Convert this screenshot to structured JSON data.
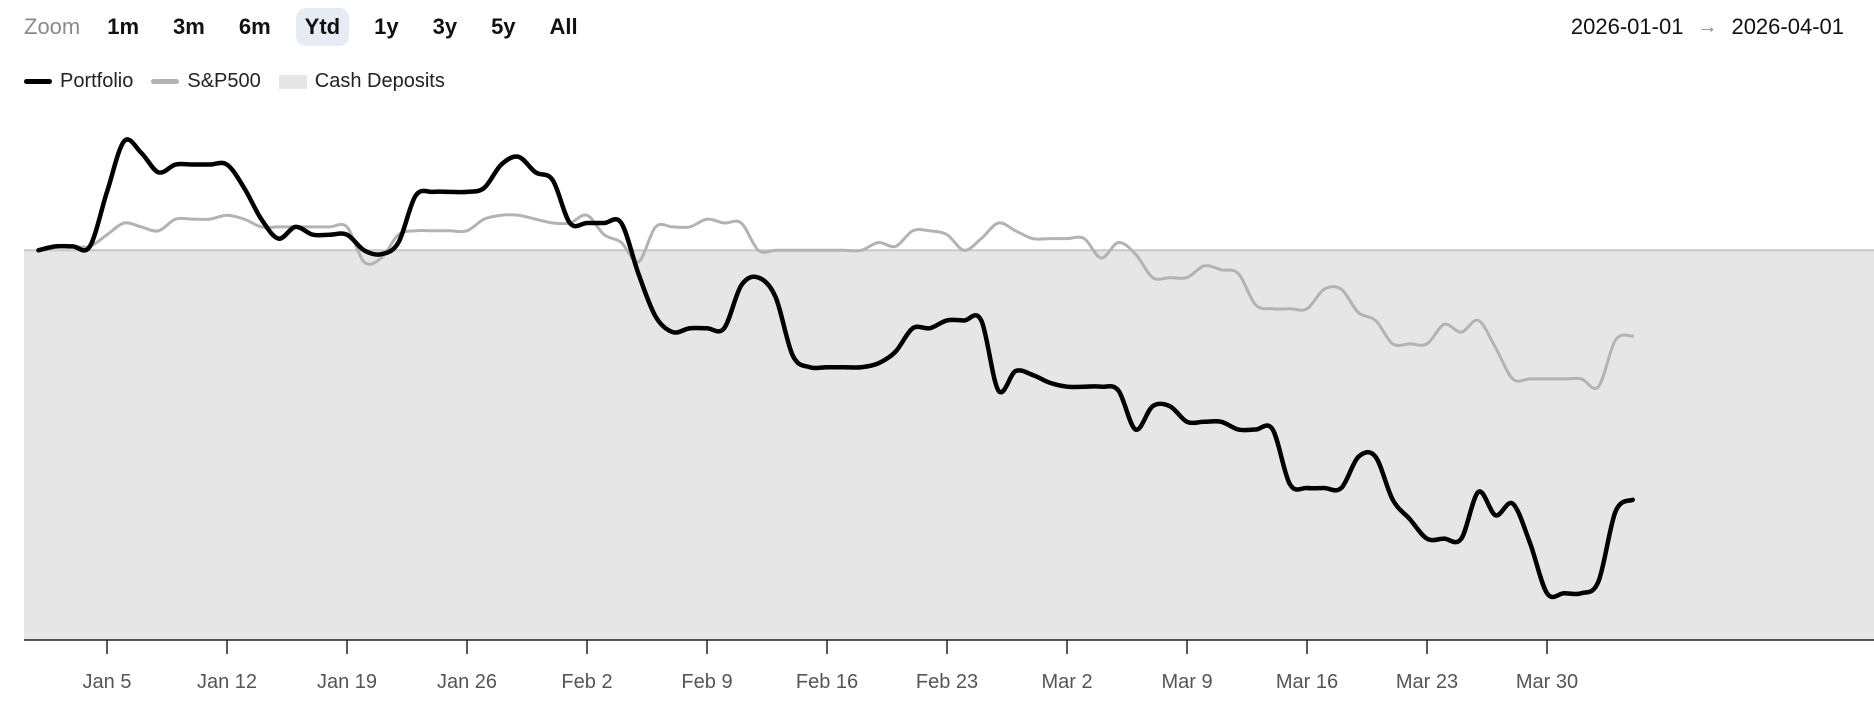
{
  "toolbar": {
    "zoom_label": "Zoom",
    "zoom_options": [
      "1m",
      "3m",
      "6m",
      "Ytd",
      "1y",
      "3y",
      "5y",
      "All"
    ],
    "active_zoom": "Ytd",
    "range_start": "2026-01-01",
    "range_arrow": "→",
    "range_end": "2026-04-01"
  },
  "colors": {
    "portfolio": "#000000",
    "sp500": "#b3b3b3",
    "cash": "#e6e6e6",
    "baseline": "#c8c8c8",
    "active_zoom_bg": "#e7ebf3"
  },
  "chart_data": {
    "type": "line",
    "title": "",
    "xlabel": "",
    "ylabel": "",
    "x_ticks": [
      "Jan 5",
      "Jan 12",
      "Jan 19",
      "Jan 26",
      "Feb 2",
      "Feb 9",
      "Feb 16",
      "Feb 23",
      "Mar 2",
      "Mar 9",
      "Mar 16",
      "Mar 23",
      "Mar 30"
    ],
    "x_start": "2026-01-01",
    "x_end": "2026-03-31",
    "y_axis_shown": false,
    "ylim": [
      -100,
      36
    ],
    "grid": false,
    "legend": {
      "position": "top-left",
      "entries": [
        "Portfolio",
        "S&P500",
        "Cash Deposits"
      ]
    },
    "series": [
      {
        "name": "Portfolio",
        "type": "line",
        "points": [
          [
            "2026-01-01",
            0
          ],
          [
            "2026-01-02",
            1
          ],
          [
            "2026-01-03",
            1
          ],
          [
            "2026-01-04",
            1
          ],
          [
            "2026-01-05",
            15
          ],
          [
            "2026-01-06",
            28
          ],
          [
            "2026-01-07",
            25
          ],
          [
            "2026-01-08",
            20
          ],
          [
            "2026-01-09",
            22
          ],
          [
            "2026-01-10",
            22
          ],
          [
            "2026-01-11",
            22
          ],
          [
            "2026-01-12",
            22
          ],
          [
            "2026-01-13",
            16
          ],
          [
            "2026-01-14",
            8
          ],
          [
            "2026-01-15",
            3
          ],
          [
            "2026-01-16",
            6
          ],
          [
            "2026-01-17",
            4
          ],
          [
            "2026-01-18",
            4
          ],
          [
            "2026-01-19",
            4
          ],
          [
            "2026-01-20",
            0
          ],
          [
            "2026-01-21",
            -1
          ],
          [
            "2026-01-22",
            2
          ],
          [
            "2026-01-23",
            14
          ],
          [
            "2026-01-24",
            15
          ],
          [
            "2026-01-25",
            15
          ],
          [
            "2026-01-26",
            15
          ],
          [
            "2026-01-27",
            16
          ],
          [
            "2026-01-28",
            22
          ],
          [
            "2026-01-29",
            24
          ],
          [
            "2026-01-30",
            20
          ],
          [
            "2026-01-31",
            18
          ],
          [
            "2026-02-01",
            7
          ],
          [
            "2026-02-02",
            7
          ],
          [
            "2026-02-03",
            7
          ],
          [
            "2026-02-04",
            7
          ],
          [
            "2026-02-05",
            -6
          ],
          [
            "2026-02-06",
            -17
          ],
          [
            "2026-02-07",
            -21
          ],
          [
            "2026-02-08",
            -20
          ],
          [
            "2026-02-09",
            -20
          ],
          [
            "2026-02-10",
            -20
          ],
          [
            "2026-02-11",
            -9
          ],
          [
            "2026-02-12",
            -7
          ],
          [
            "2026-02-13",
            -12
          ],
          [
            "2026-02-14",
            -27
          ],
          [
            "2026-02-15",
            -30
          ],
          [
            "2026-02-16",
            -30
          ],
          [
            "2026-02-17",
            -30
          ],
          [
            "2026-02-18",
            -30
          ],
          [
            "2026-02-19",
            -29
          ],
          [
            "2026-02-20",
            -26
          ],
          [
            "2026-02-21",
            -20
          ],
          [
            "2026-02-22",
            -20
          ],
          [
            "2026-02-23",
            -18
          ],
          [
            "2026-02-24",
            -18
          ],
          [
            "2026-02-25",
            -18
          ],
          [
            "2026-02-26",
            -36
          ],
          [
            "2026-02-27",
            -31
          ],
          [
            "2026-02-28",
            -32
          ],
          [
            "2026-03-01",
            -34
          ],
          [
            "2026-03-02",
            -35
          ],
          [
            "2026-03-03",
            -35
          ],
          [
            "2026-03-04",
            -35
          ],
          [
            "2026-03-05",
            -36
          ],
          [
            "2026-03-06",
            -46
          ],
          [
            "2026-03-07",
            -40
          ],
          [
            "2026-03-08",
            -40
          ],
          [
            "2026-03-09",
            -44
          ],
          [
            "2026-03-10",
            -44
          ],
          [
            "2026-03-11",
            -44
          ],
          [
            "2026-03-12",
            -46
          ],
          [
            "2026-03-13",
            -46
          ],
          [
            "2026-03-14",
            -46
          ],
          [
            "2026-03-15",
            -60
          ],
          [
            "2026-03-16",
            -61
          ],
          [
            "2026-03-17",
            -61
          ],
          [
            "2026-03-18",
            -61
          ],
          [
            "2026-03-19",
            -53
          ],
          [
            "2026-03-20",
            -53
          ],
          [
            "2026-03-21",
            -64
          ],
          [
            "2026-03-22",
            -69
          ],
          [
            "2026-03-23",
            -74
          ],
          [
            "2026-03-24",
            -74
          ],
          [
            "2026-03-25",
            -74
          ],
          [
            "2026-03-26",
            -62
          ],
          [
            "2026-03-27",
            -68
          ],
          [
            "2026-03-28",
            -65
          ],
          [
            "2026-03-29",
            -75
          ],
          [
            "2026-03-30",
            -88
          ],
          [
            "2026-03-31",
            -88
          ],
          [
            "2026-04-01",
            -88
          ],
          [
            "2026-04-02",
            -85
          ],
          [
            "2026-04-03",
            -67
          ],
          [
            "2026-04-04",
            -64
          ]
        ]
      },
      {
        "name": "S&P500",
        "type": "line",
        "points": [
          [
            "2026-01-01",
            0
          ],
          [
            "2026-01-02",
            1
          ],
          [
            "2026-01-03",
            1
          ],
          [
            "2026-01-04",
            1
          ],
          [
            "2026-01-05",
            4
          ],
          [
            "2026-01-06",
            7
          ],
          [
            "2026-01-07",
            6
          ],
          [
            "2026-01-08",
            5
          ],
          [
            "2026-01-09",
            8
          ],
          [
            "2026-01-10",
            8
          ],
          [
            "2026-01-11",
            8
          ],
          [
            "2026-01-12",
            9
          ],
          [
            "2026-01-13",
            8
          ],
          [
            "2026-01-14",
            6
          ],
          [
            "2026-01-15",
            6
          ],
          [
            "2026-01-16",
            6
          ],
          [
            "2026-01-17",
            6
          ],
          [
            "2026-01-18",
            6
          ],
          [
            "2026-01-19",
            6
          ],
          [
            "2026-01-20",
            -3
          ],
          [
            "2026-01-21",
            -2
          ],
          [
            "2026-01-22",
            4
          ],
          [
            "2026-01-23",
            5
          ],
          [
            "2026-01-24",
            5
          ],
          [
            "2026-01-25",
            5
          ],
          [
            "2026-01-26",
            5
          ],
          [
            "2026-01-27",
            8
          ],
          [
            "2026-01-28",
            9
          ],
          [
            "2026-01-29",
            9
          ],
          [
            "2026-01-30",
            8
          ],
          [
            "2026-01-31",
            7
          ],
          [
            "2026-02-01",
            7
          ],
          [
            "2026-02-02",
            9
          ],
          [
            "2026-02-03",
            4
          ],
          [
            "2026-02-04",
            2
          ],
          [
            "2026-02-05",
            -3
          ],
          [
            "2026-02-06",
            6
          ],
          [
            "2026-02-07",
            6
          ],
          [
            "2026-02-08",
            6
          ],
          [
            "2026-02-09",
            8
          ],
          [
            "2026-02-10",
            7
          ],
          [
            "2026-02-11",
            7
          ],
          [
            "2026-02-12",
            0
          ],
          [
            "2026-02-13",
            0
          ],
          [
            "2026-02-14",
            0
          ],
          [
            "2026-02-15",
            0
          ],
          [
            "2026-02-16",
            0
          ],
          [
            "2026-02-17",
            0
          ],
          [
            "2026-02-18",
            0
          ],
          [
            "2026-02-19",
            2
          ],
          [
            "2026-02-20",
            1
          ],
          [
            "2026-02-21",
            5
          ],
          [
            "2026-02-22",
            5
          ],
          [
            "2026-02-23",
            4
          ],
          [
            "2026-02-24",
            0
          ],
          [
            "2026-02-25",
            3
          ],
          [
            "2026-02-26",
            7
          ],
          [
            "2026-02-27",
            5
          ],
          [
            "2026-02-28",
            3
          ],
          [
            "2026-03-01",
            3
          ],
          [
            "2026-03-02",
            3
          ],
          [
            "2026-03-03",
            3
          ],
          [
            "2026-03-04",
            -2
          ],
          [
            "2026-03-05",
            2
          ],
          [
            "2026-03-06",
            -1
          ],
          [
            "2026-03-07",
            -7
          ],
          [
            "2026-03-08",
            -7
          ],
          [
            "2026-03-09",
            -7
          ],
          [
            "2026-03-10",
            -4
          ],
          [
            "2026-03-11",
            -5
          ],
          [
            "2026-03-12",
            -6
          ],
          [
            "2026-03-13",
            -14
          ],
          [
            "2026-03-14",
            -15
          ],
          [
            "2026-03-15",
            -15
          ],
          [
            "2026-03-16",
            -15
          ],
          [
            "2026-03-17",
            -10
          ],
          [
            "2026-03-18",
            -10
          ],
          [
            "2026-03-19",
            -16
          ],
          [
            "2026-03-20",
            -18
          ],
          [
            "2026-03-21",
            -24
          ],
          [
            "2026-03-22",
            -24
          ],
          [
            "2026-03-23",
            -24
          ],
          [
            "2026-03-24",
            -19
          ],
          [
            "2026-03-25",
            -21
          ],
          [
            "2026-03-26",
            -18
          ],
          [
            "2026-03-27",
            -25
          ],
          [
            "2026-03-28",
            -33
          ],
          [
            "2026-03-29",
            -33
          ],
          [
            "2026-03-30",
            -33
          ],
          [
            "2026-03-31",
            -33
          ],
          [
            "2026-04-01",
            -33
          ],
          [
            "2026-04-02",
            -35
          ],
          [
            "2026-04-03",
            -23
          ],
          [
            "2026-04-04",
            -22
          ]
        ]
      },
      {
        "name": "Cash Deposits",
        "type": "area",
        "points": [
          [
            "2026-01-01",
            0
          ],
          [
            "2026-04-04",
            0
          ]
        ]
      }
    ]
  }
}
